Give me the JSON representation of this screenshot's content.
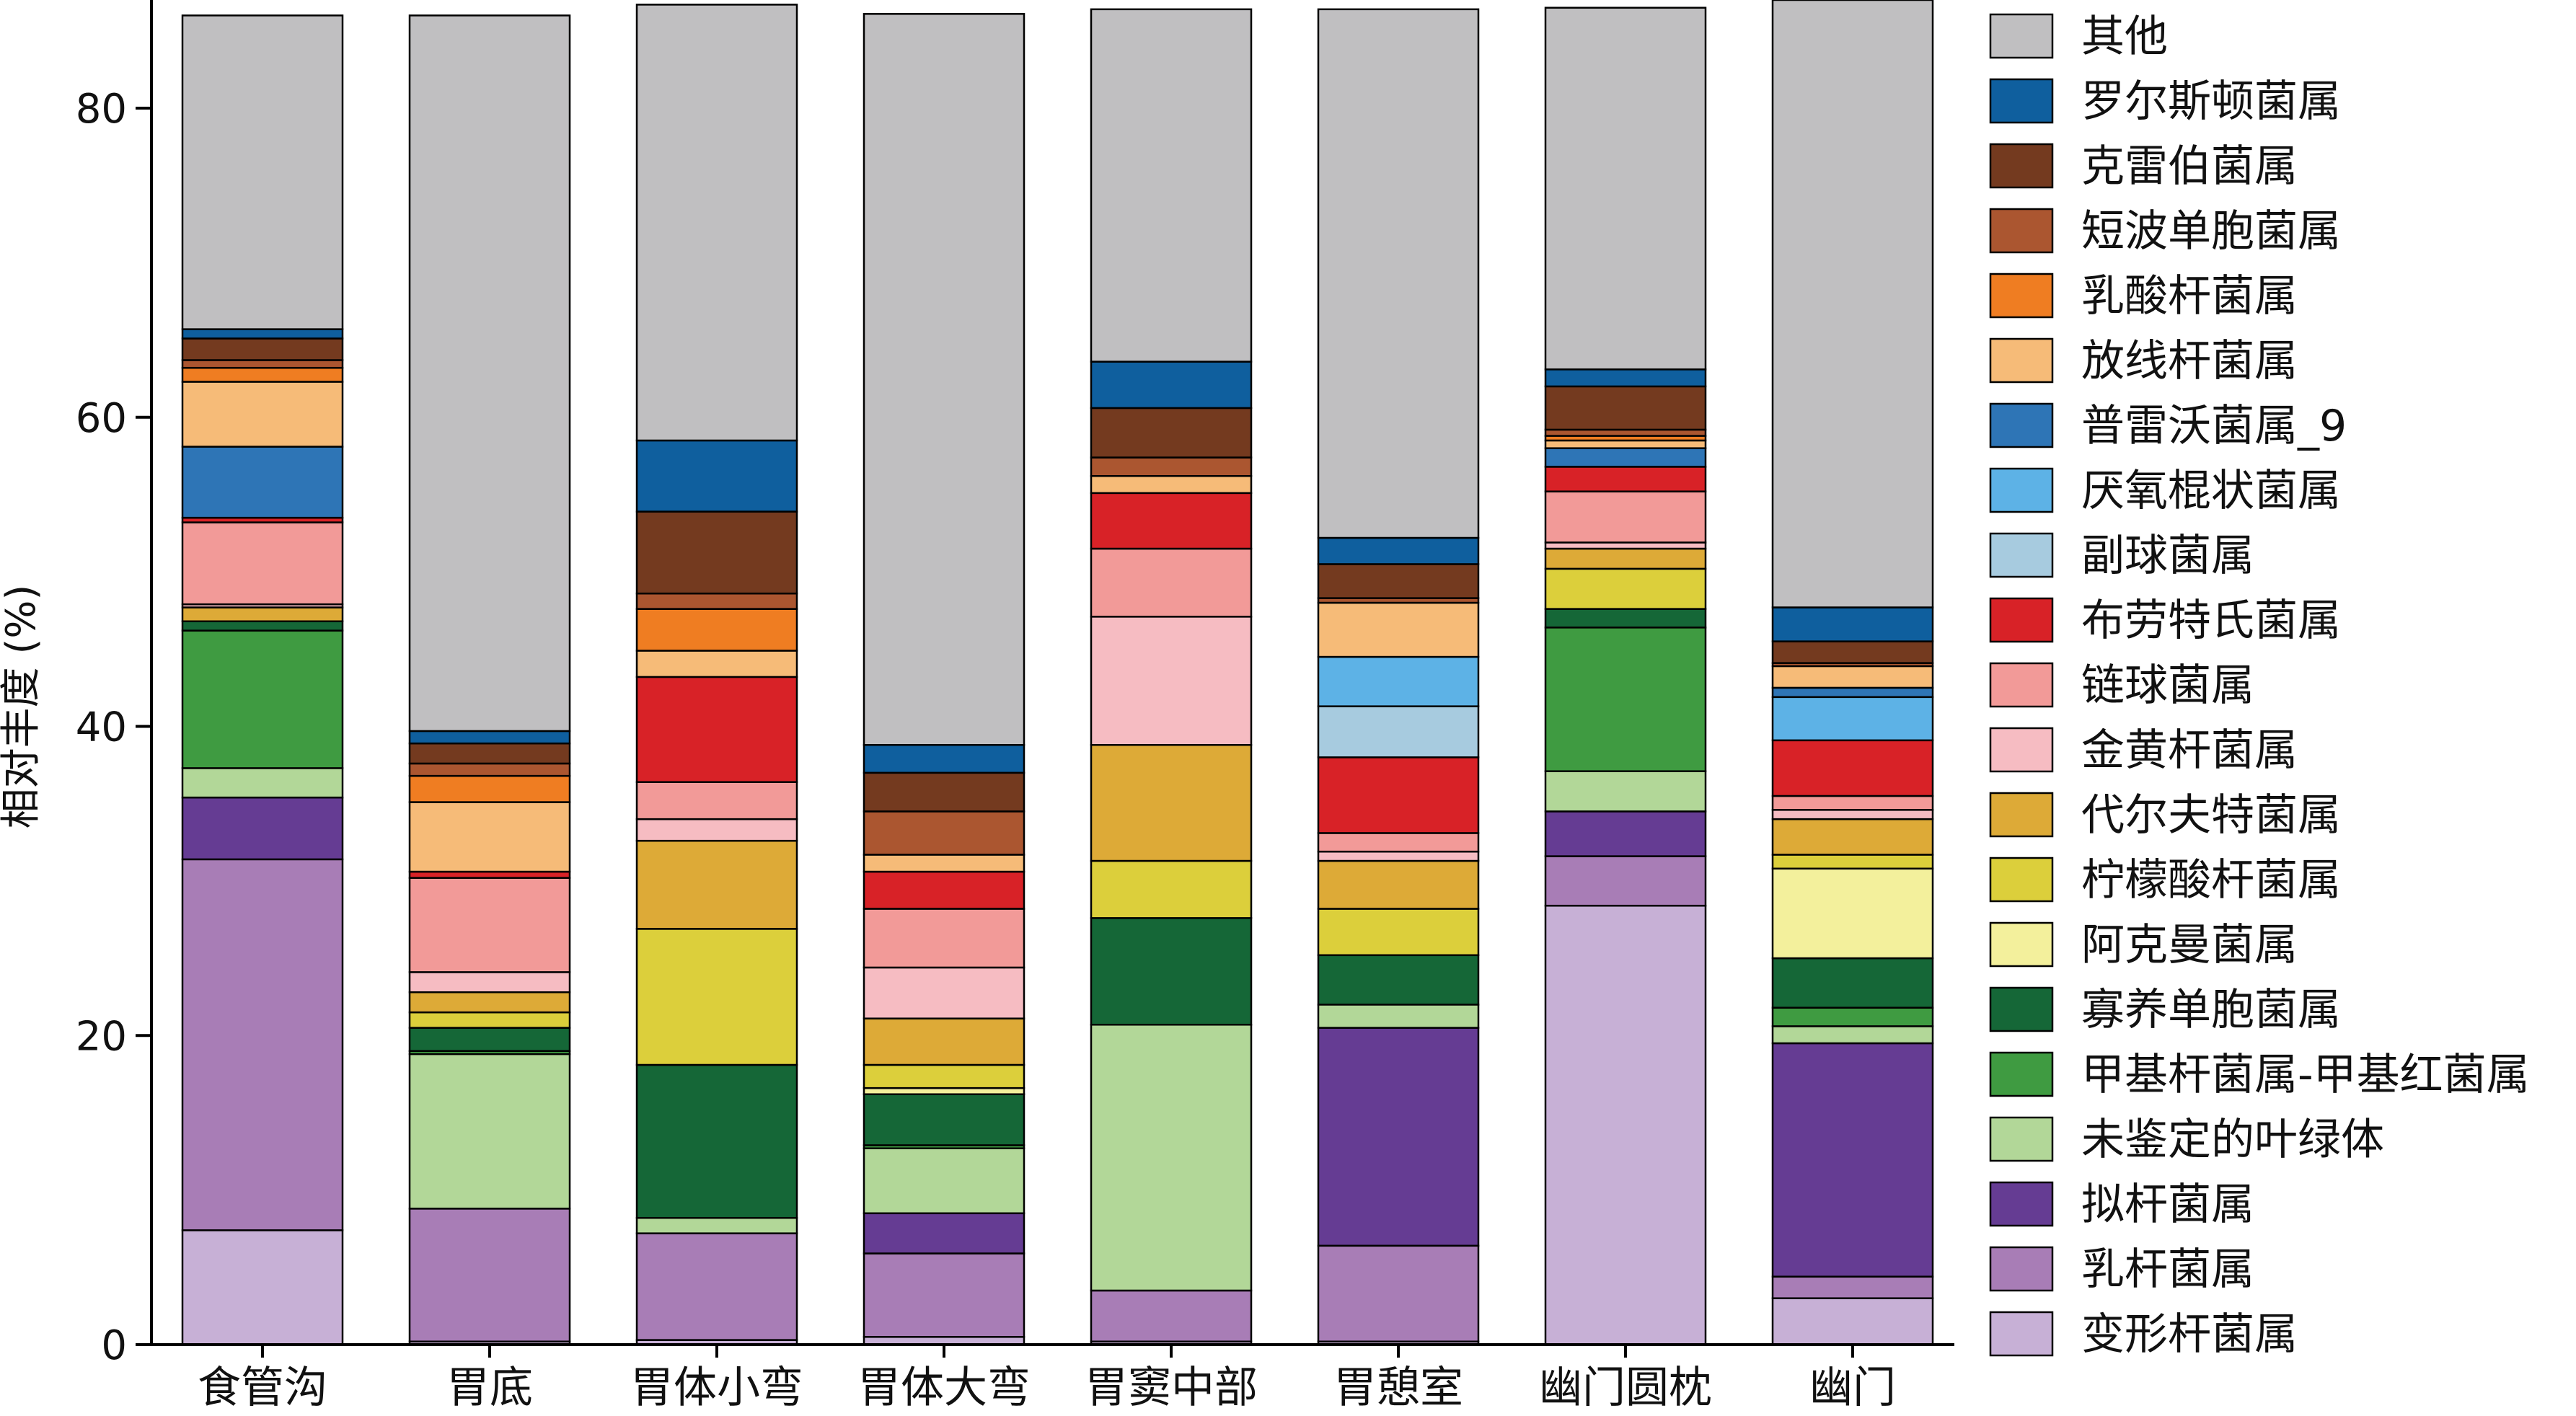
{
  "chart_data": {
    "type": "bar",
    "stacked": true,
    "title": "",
    "xlabel": "",
    "ylabel": "相对丰度 (%)",
    "ylim": [
      0,
      87
    ],
    "yticks": [
      0,
      20,
      40,
      60,
      80
    ],
    "grid": false,
    "legend_position": "right",
    "categories": [
      "食管沟",
      "胃底",
      "胃体小弯",
      "胃体大弯",
      "胃窦中部",
      "胃憩室",
      "幽门圆枕",
      "幽门"
    ],
    "series": [
      {
        "name": "变形杆菌属",
        "color": "#c7b0d6",
        "values": [
          7.4,
          0.2,
          0.3,
          0.5,
          0.2,
          0.2,
          28.4,
          3.0
        ]
      },
      {
        "name": "乳杆菌属",
        "color": "#a87db6",
        "values": [
          24.0,
          8.6,
          6.9,
          5.4,
          3.3,
          6.2,
          3.2,
          1.4
        ]
      },
      {
        "name": "拟杆菌属",
        "color": "#653c93",
        "values": [
          4.0,
          0.0,
          0.0,
          2.6,
          0.0,
          14.1,
          2.9,
          15.1
        ]
      },
      {
        "name": "未鉴定的叶绿体",
        "color": "#b2d798",
        "values": [
          1.9,
          10.0,
          1.0,
          4.2,
          17.2,
          1.5,
          2.6,
          1.1
        ]
      },
      {
        "name": "甲基杆菌属-甲基红菌属",
        "color": "#3f9b41",
        "values": [
          8.9,
          0.2,
          0.0,
          0.2,
          0.0,
          0.0,
          9.3,
          1.2
        ]
      },
      {
        "name": "寡养单胞菌属",
        "color": "#156737",
        "values": [
          0.6,
          1.5,
          9.9,
          3.3,
          6.9,
          3.2,
          1.2,
          3.2
        ]
      },
      {
        "name": "阿克曼菌属",
        "color": "#f3f09c",
        "values": [
          0.0,
          0.0,
          0.0,
          0.4,
          0.0,
          0.0,
          0.0,
          5.8
        ]
      },
      {
        "name": "柠檬酸杆菌属",
        "color": "#dccf3b",
        "values": [
          0.0,
          1.0,
          8.8,
          1.5,
          3.7,
          3.0,
          2.6,
          0.9
        ]
      },
      {
        "name": "代尔夫特菌属",
        "color": "#ddaa37",
        "values": [
          0.9,
          1.3,
          5.7,
          3.0,
          7.5,
          3.1,
          1.3,
          2.3
        ]
      },
      {
        "name": "金黄杆菌属",
        "color": "#f6bcc2",
        "values": [
          0.2,
          1.3,
          1.4,
          3.3,
          8.3,
          0.6,
          0.4,
          0.6
        ]
      },
      {
        "name": "链球菌属",
        "color": "#f29a98",
        "values": [
          5.3,
          6.1,
          2.4,
          3.8,
          4.4,
          1.2,
          3.3,
          0.9
        ]
      },
      {
        "name": "布劳特氏菌属",
        "color": "#d82227",
        "values": [
          0.3,
          0.4,
          6.8,
          2.4,
          3.6,
          4.9,
          1.6,
          3.6
        ]
      },
      {
        "name": "副球菌属",
        "color": "#a7cbdf",
        "values": [
          0.0,
          0.0,
          0.0,
          0.0,
          0.0,
          3.3,
          0.0,
          0.0
        ]
      },
      {
        "name": "厌氧棍状菌属",
        "color": "#5db2e6",
        "values": [
          0.0,
          0.0,
          0.0,
          0.0,
          0.0,
          3.2,
          0.0,
          2.8
        ]
      },
      {
        "name": "普雷沃菌属_9",
        "color": "#2e75b6",
        "values": [
          4.6,
          0.0,
          0.0,
          0.0,
          0.0,
          0.0,
          1.2,
          0.6
        ]
      },
      {
        "name": "放线杆菌属",
        "color": "#f6bb78",
        "values": [
          4.2,
          4.5,
          1.7,
          1.1,
          1.1,
          3.5,
          0.5,
          1.4
        ]
      },
      {
        "name": "乳酸杆菌属",
        "color": "#ef7d22",
        "values": [
          0.9,
          1.7,
          2.7,
          0.0,
          0.0,
          0.0,
          0.3,
          0.0
        ]
      },
      {
        "name": "短波单胞菌属",
        "color": "#ab5630",
        "values": [
          0.5,
          0.8,
          1.0,
          2.8,
          1.2,
          0.3,
          0.4,
          0.2
        ]
      },
      {
        "name": "克雷伯菌属",
        "color": "#743a1f",
        "values": [
          1.4,
          1.3,
          5.3,
          2.5,
          3.2,
          2.2,
          2.8,
          1.4
        ]
      },
      {
        "name": "罗尔斯顿菌属",
        "color": "#0f5f9e",
        "values": [
          0.6,
          0.8,
          4.6,
          1.8,
          3.0,
          1.7,
          1.1,
          2.2
        ]
      },
      {
        "name": "其他",
        "color": "#c0bfc1",
        "values": [
          20.3,
          46.3,
          28.2,
          47.3,
          22.8,
          34.2,
          23.4,
          39.3
        ]
      }
    ]
  }
}
